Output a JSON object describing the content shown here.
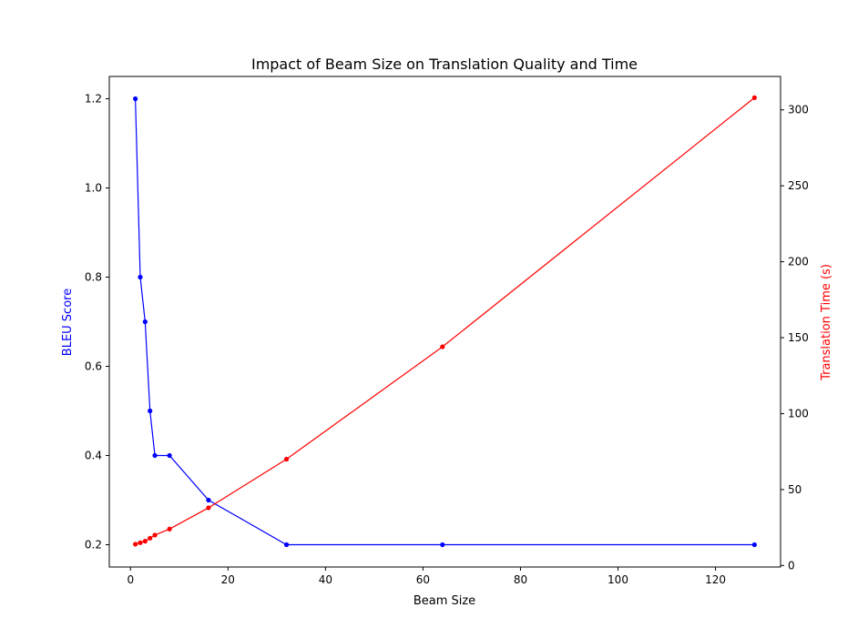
{
  "chart_data": {
    "type": "line",
    "title": "Impact of Beam Size on Translation Quality and Time",
    "xlabel": "Beam Size",
    "ylabel_left": "BLEU Score",
    "ylabel_right": "Translation Time (s)",
    "x": [
      1,
      2,
      3,
      4,
      5,
      8,
      16,
      32,
      64,
      128
    ],
    "xlim": [
      -4.35,
      133.35
    ],
    "ylim_left": [
      0.15,
      1.25
    ],
    "ylim_right": [
      -1.0,
      322.0
    ],
    "xticks": [
      0,
      20,
      40,
      60,
      80,
      100,
      120
    ],
    "yticks_left": [
      0.2,
      0.4,
      0.6,
      0.8,
      1.0,
      1.2
    ],
    "yticks_left_labels": [
      "0.2",
      "0.4",
      "0.6",
      "0.8",
      "1.0",
      "1.2"
    ],
    "yticks_right": [
      0,
      50,
      100,
      150,
      200,
      250,
      300
    ],
    "grid": false,
    "legend": "none",
    "series": [
      {
        "axis": "left",
        "color": "#0000ff",
        "values": [
          1.2,
          0.8,
          0.7,
          0.5,
          0.4,
          0.4,
          0.3,
          0.2,
          0.2,
          0.2
        ]
      },
      {
        "axis": "right",
        "color": "#ff0000",
        "values": [
          14,
          15,
          16,
          18,
          20,
          24,
          38,
          70,
          144,
          308
        ]
      }
    ]
  }
}
